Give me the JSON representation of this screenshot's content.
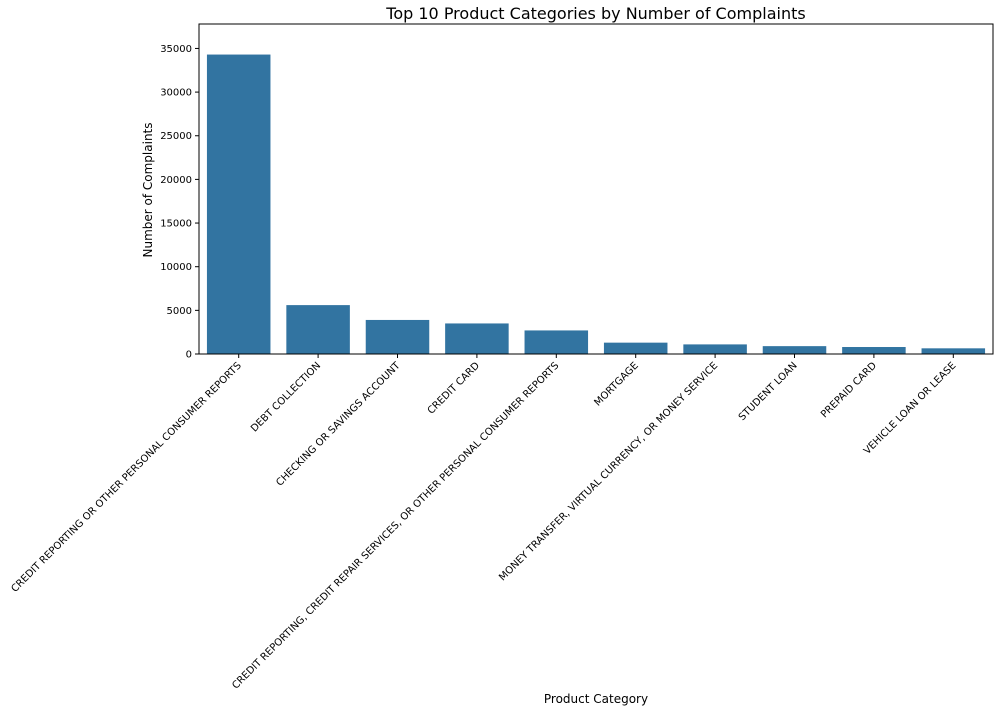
{
  "chart_data": {
    "type": "bar",
    "title": "Top 10 Product Categories by Number of Complaints",
    "xlabel": "Product Category",
    "ylabel": "Number of Complaints",
    "ylim": [
      0,
      37800
    ],
    "yticks": [
      0,
      5000,
      10000,
      15000,
      20000,
      25000,
      30000,
      35000
    ],
    "grid": false,
    "bar_color": "#3274a1",
    "categories": [
      "CREDIT REPORTING OR OTHER PERSONAL CONSUMER REPORTS",
      "DEBT COLLECTION",
      "CHECKING OR SAVINGS ACCOUNT",
      "CREDIT CARD",
      "CREDIT REPORTING, CREDIT REPAIR SERVICES, OR OTHER PERSONAL CONSUMER REPORTS",
      "MORTGAGE",
      "MONEY TRANSFER, VIRTUAL CURRENCY, OR MONEY SERVICE",
      "STUDENT LOAN",
      "PREPAID CARD",
      "VEHICLE LOAN OR LEASE"
    ],
    "values": [
      34300,
      5600,
      3900,
      3500,
      2700,
      1300,
      1100,
      900,
      800,
      650
    ]
  }
}
